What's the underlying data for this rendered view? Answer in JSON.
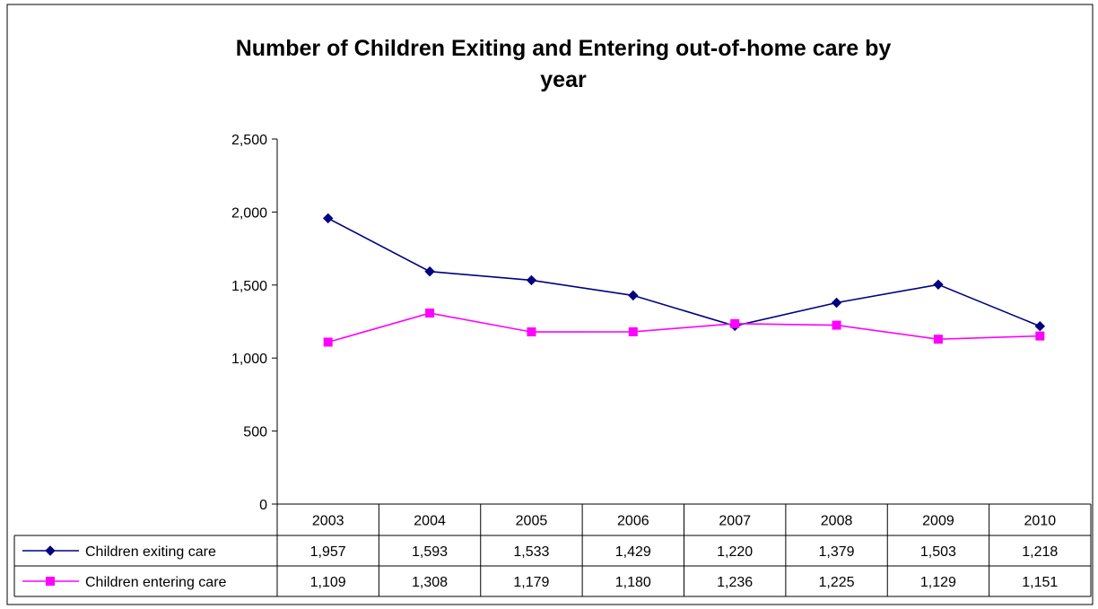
{
  "chart_data": {
    "type": "line",
    "title": "Number of Children Exiting and Entering out-of-home care by year",
    "title_lines": [
      "Number of Children Exiting and Entering out-of-home care by",
      "year"
    ],
    "categories": [
      "2003",
      "2004",
      "2005",
      "2006",
      "2007",
      "2008",
      "2009",
      "2010"
    ],
    "series": [
      {
        "name": "Children exiting care",
        "values": [
          1957,
          1593,
          1533,
          1429,
          1220,
          1379,
          1503,
          1218
        ],
        "labels": [
          "1,957",
          "1,593",
          "1,533",
          "1,429",
          "1,220",
          "1,379",
          "1,503",
          "1,218"
        ],
        "color": "#000080",
        "marker": "diamond"
      },
      {
        "name": "Children entering care",
        "values": [
          1109,
          1308,
          1179,
          1180,
          1236,
          1225,
          1129,
          1151
        ],
        "labels": [
          "1,109",
          "1,308",
          "1,179",
          "1,180",
          "1,236",
          "1,225",
          "1,129",
          "1,151"
        ],
        "color": "#ff00ff",
        "marker": "square"
      }
    ],
    "ylim": [
      0,
      2500
    ],
    "yticks": [
      0,
      500,
      1000,
      1500,
      2000,
      2500
    ],
    "ytick_labels": [
      "0",
      "500",
      "1,000",
      "1,500",
      "2,000",
      "2,500"
    ],
    "xlabel": "",
    "ylabel": "",
    "grid": false,
    "legend": "data-table"
  }
}
